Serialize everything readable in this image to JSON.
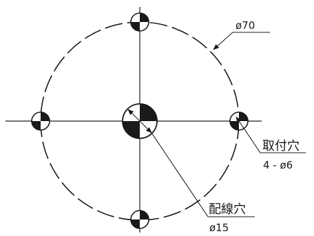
{
  "labels": {
    "bolt_circle": "ø70",
    "mount_hole_title": "取付穴",
    "mount_hole_spec": "4 - ø6",
    "wiring_hole_title": "配線穴",
    "wiring_hole_spec": "ø15"
  },
  "colors": {
    "ink": "#1a1a1a",
    "background": "#ffffff"
  }
}
